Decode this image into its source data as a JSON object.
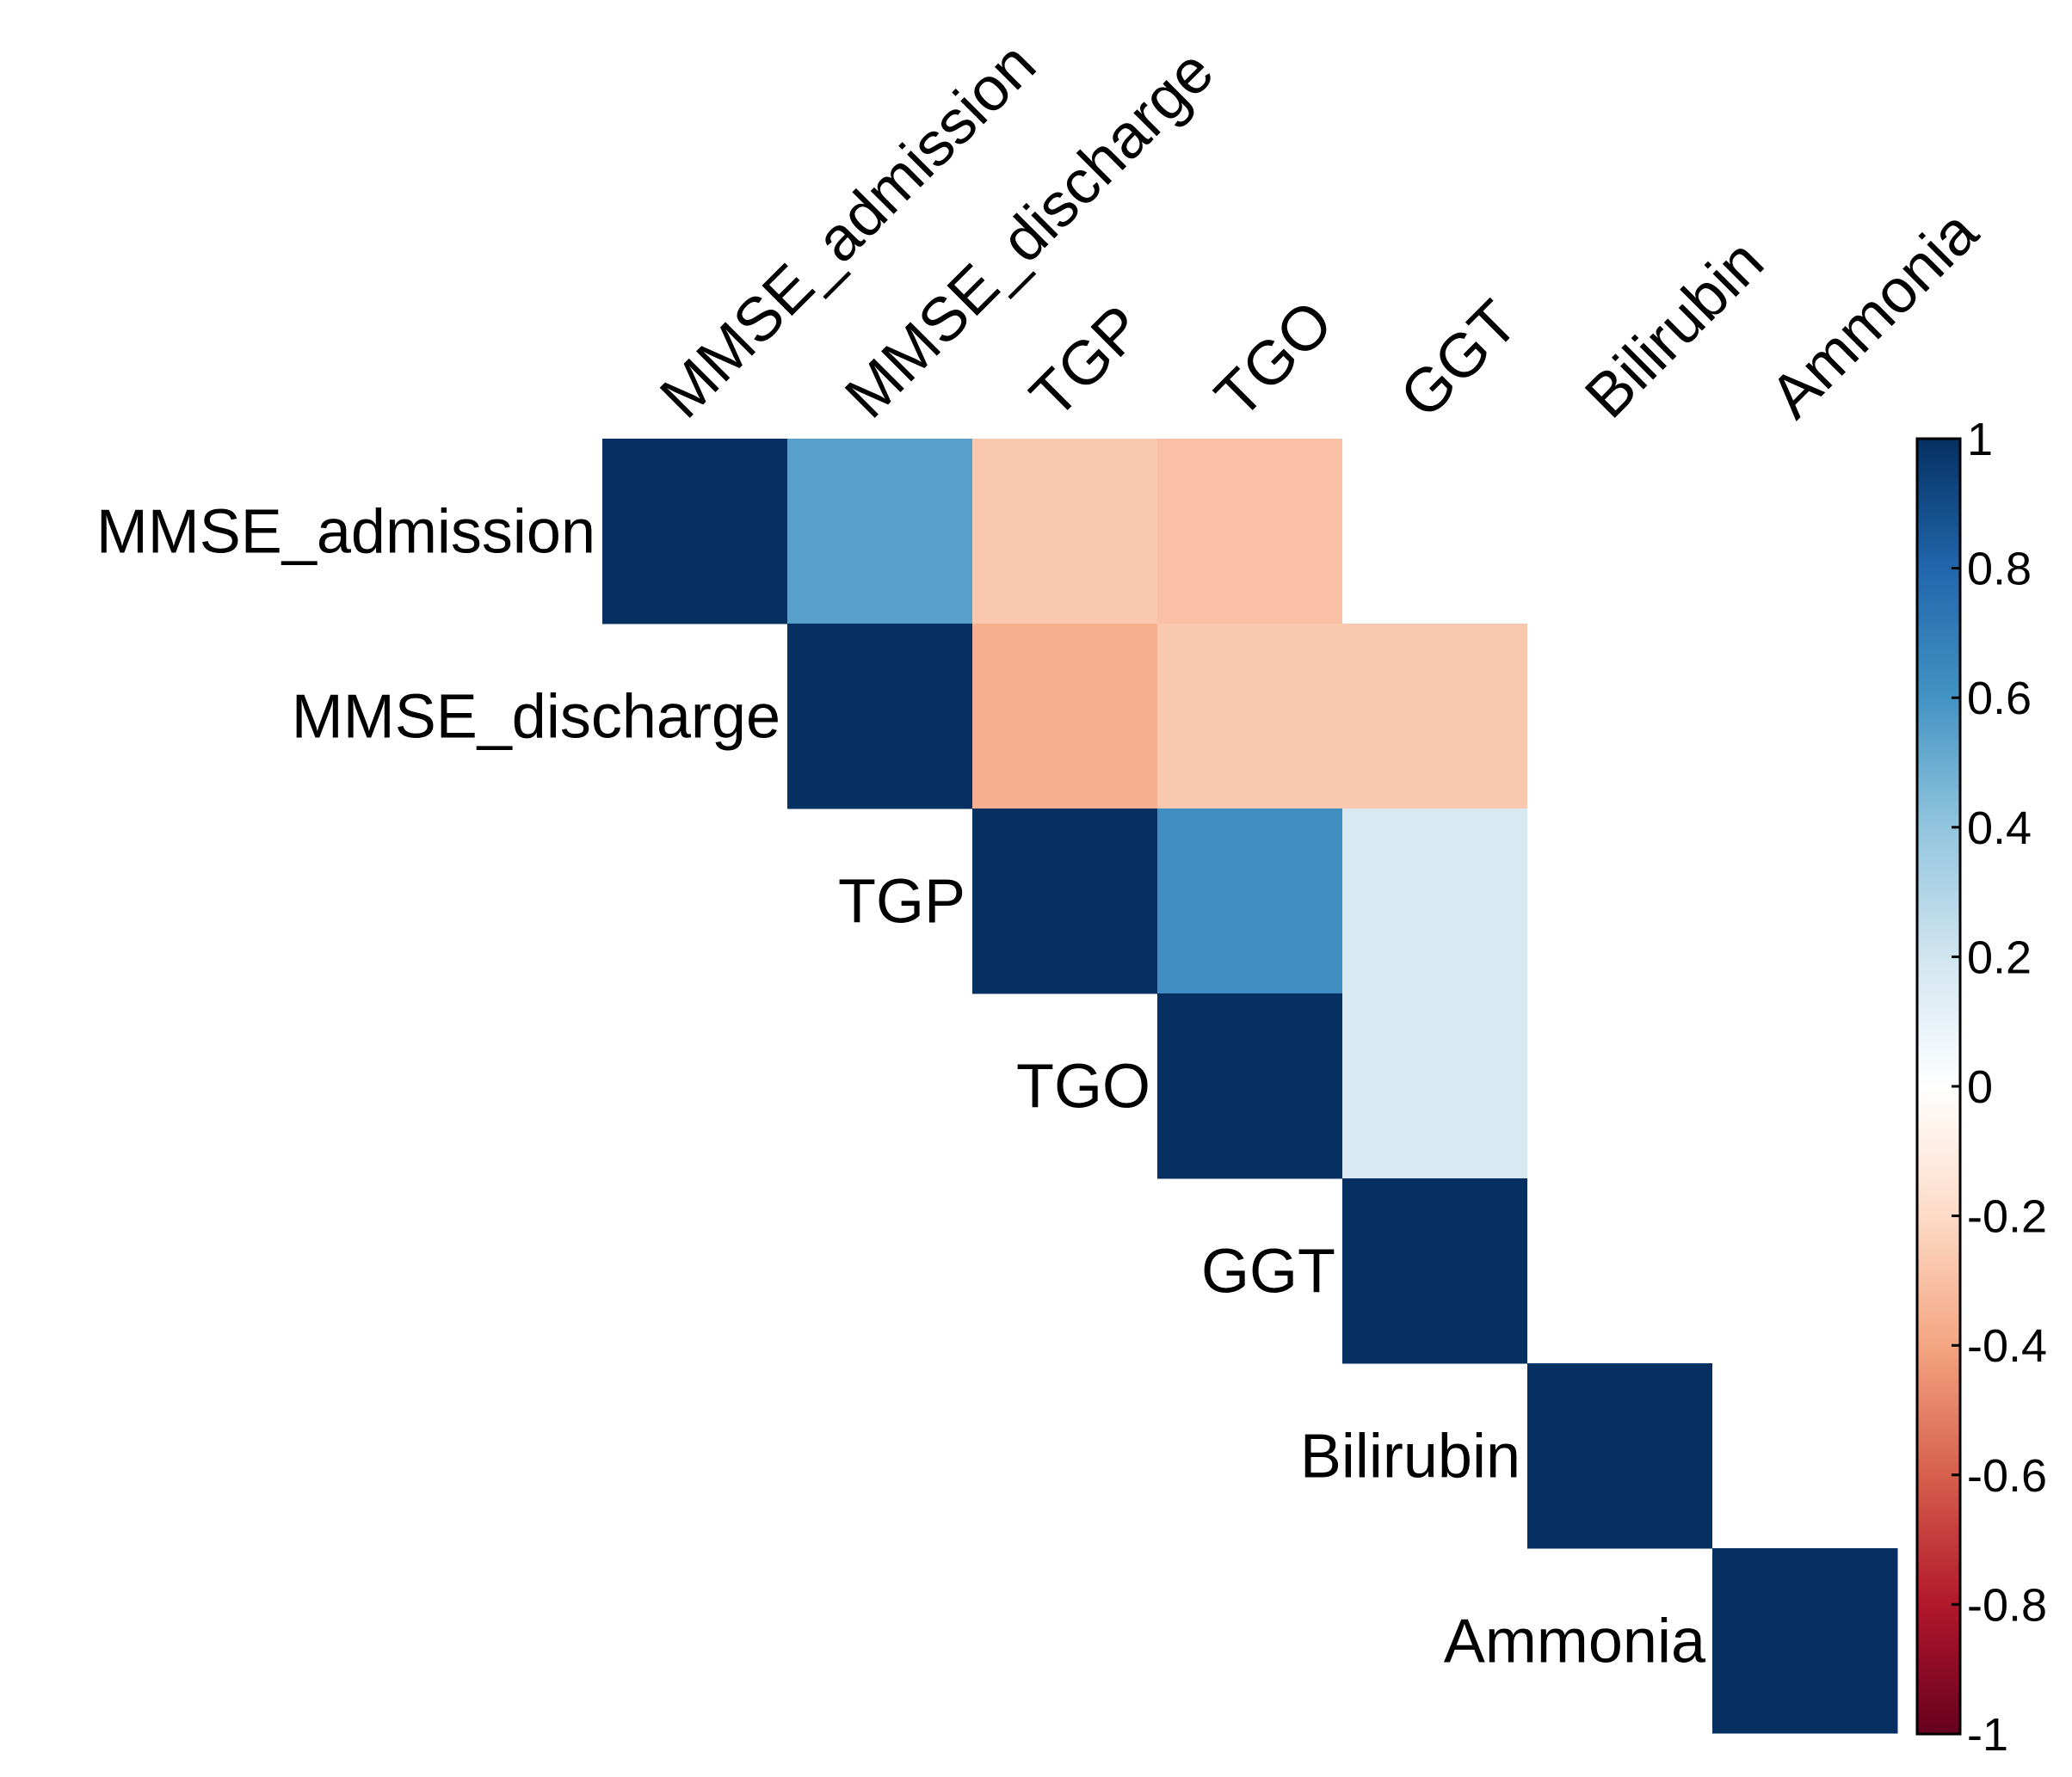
{
  "chart_data": {
    "type": "heatmap",
    "subtype": "correlation-matrix-upper",
    "variables": [
      "MMSE_admission",
      "MMSE_discharge",
      "TGP",
      "TGO",
      "GGT",
      "Bilirubin",
      "Ammonia"
    ],
    "matrix": [
      [
        1.0,
        0.55,
        -0.27,
        -0.3,
        0,
        0,
        0
      ],
      [
        null,
        1.0,
        -0.36,
        -0.27,
        -0.27,
        0,
        0
      ],
      [
        null,
        null,
        1.0,
        0.62,
        0.17,
        0,
        0
      ],
      [
        null,
        null,
        null,
        1.0,
        0.17,
        0,
        0
      ],
      [
        null,
        null,
        null,
        null,
        1.0,
        0,
        0
      ],
      [
        null,
        null,
        null,
        null,
        null,
        1.0,
        0
      ],
      [
        null,
        null,
        null,
        null,
        null,
        null,
        1.0
      ]
    ],
    "colorbar": {
      "range": [
        -1,
        1
      ],
      "ticks": [
        "1",
        "0.8",
        "0.6",
        "0.4",
        "0.2",
        "0",
        "-0.2",
        "-0.4",
        "-0.6",
        "-0.8",
        "-1"
      ],
      "colors_low_to_high": [
        "#67001F",
        "#B2182B",
        "#D6604D",
        "#F4A582",
        "#FDDBC7",
        "#FFFFFF",
        "#D1E5F0",
        "#92C5DE",
        "#4393C3",
        "#2166AC",
        "#053061"
      ]
    },
    "title": "",
    "xlabel": "",
    "ylabel": ""
  }
}
